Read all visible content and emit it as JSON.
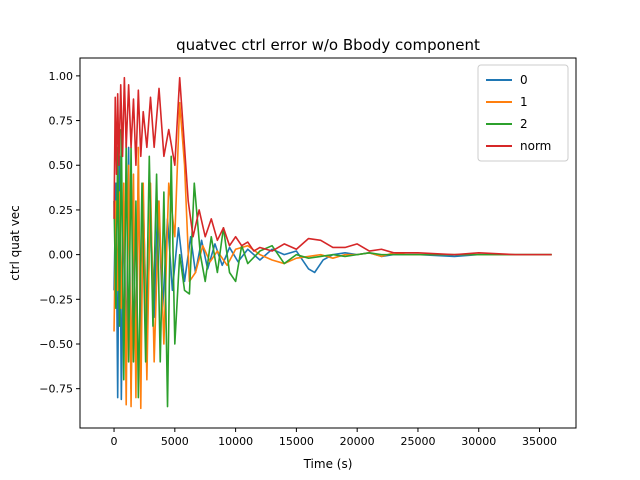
{
  "chart_data": {
    "type": "line",
    "title": "quatvec ctrl error w/o Bbody component",
    "xlabel": "Time (s)",
    "ylabel": "ctrl quat vec",
    "xlim": [
      -2800,
      38000
    ],
    "ylim": [
      -0.97,
      1.1
    ],
    "xticks": [
      0,
      5000,
      10000,
      15000,
      20000,
      25000,
      30000,
      35000
    ],
    "xtick_labels": [
      "0",
      "5000",
      "10000",
      "15000",
      "20000",
      "25000",
      "30000",
      "35000"
    ],
    "yticks": [
      -0.75,
      -0.5,
      -0.25,
      0.0,
      0.25,
      0.5,
      0.75,
      1.0
    ],
    "ytick_labels": [
      "−0.75",
      "−0.50",
      "−0.25",
      "0.00",
      "0.25",
      "0.50",
      "0.75",
      "1.00"
    ],
    "grid": false,
    "legend": "top-right",
    "series": [
      {
        "name": "0",
        "color": "#1f77b4",
        "points": [
          [
            0,
            -0.2
          ],
          [
            150,
            0.4
          ],
          [
            300,
            -0.8
          ],
          [
            450,
            0.55
          ],
          [
            600,
            -0.81
          ],
          [
            800,
            0.3
          ],
          [
            1000,
            -0.6
          ],
          [
            1200,
            0.6
          ],
          [
            1400,
            -0.75
          ],
          [
            1600,
            0.2
          ],
          [
            1800,
            -0.55
          ],
          [
            2000,
            0.5
          ],
          [
            2200,
            -0.6
          ],
          [
            2400,
            0.3
          ],
          [
            2700,
            -0.45
          ],
          [
            3000,
            0.25
          ],
          [
            3300,
            -0.35
          ],
          [
            3600,
            0.3
          ],
          [
            4000,
            -0.3
          ],
          [
            4400,
            0.2
          ],
          [
            4800,
            -0.2
          ],
          [
            5300,
            0.15
          ],
          [
            5800,
            -0.15
          ],
          [
            6300,
            0.1
          ],
          [
            6700,
            -0.1
          ],
          [
            7200,
            0.08
          ],
          [
            7700,
            -0.08
          ],
          [
            8300,
            0.06
          ],
          [
            8900,
            -0.06
          ],
          [
            9500,
            0.04
          ],
          [
            10200,
            -0.04
          ],
          [
            11000,
            0.03
          ],
          [
            12000,
            -0.03
          ],
          [
            13000,
            0.03
          ],
          [
            14000,
            0.0
          ],
          [
            15000,
            0.02
          ],
          [
            16000,
            -0.08
          ],
          [
            16500,
            -0.1
          ],
          [
            17200,
            -0.03
          ],
          [
            18000,
            0.0
          ],
          [
            19000,
            0.01
          ],
          [
            20000,
            0.0
          ],
          [
            21000,
            0.01
          ],
          [
            22000,
            -0.01
          ],
          [
            23000,
            0.0
          ],
          [
            25000,
            0.0
          ],
          [
            28000,
            -0.01
          ],
          [
            30000,
            0.0
          ],
          [
            33000,
            0.0
          ],
          [
            36000,
            0.0
          ]
        ]
      },
      {
        "name": "1",
        "color": "#ff7f0e",
        "points": [
          [
            0,
            -0.43
          ],
          [
            150,
            0.3
          ],
          [
            300,
            -0.2
          ],
          [
            450,
            0.35
          ],
          [
            600,
            -0.3
          ],
          [
            800,
            0.4
          ],
          [
            1000,
            -0.84
          ],
          [
            1200,
            0.5
          ],
          [
            1400,
            -0.85
          ],
          [
            1600,
            0.45
          ],
          [
            1800,
            -0.8
          ],
          [
            2000,
            0.6
          ],
          [
            2200,
            -0.86
          ],
          [
            2400,
            0.4
          ],
          [
            2700,
            -0.7
          ],
          [
            3000,
            0.4
          ],
          [
            3300,
            -0.6
          ],
          [
            3700,
            0.3
          ],
          [
            4100,
            -0.5
          ],
          [
            4500,
            0.4
          ],
          [
            5000,
            0.1
          ],
          [
            5400,
            0.85
          ],
          [
            5800,
            0.5
          ],
          [
            6200,
            -0.15
          ],
          [
            6700,
            -0.1
          ],
          [
            7300,
            0.05
          ],
          [
            7900,
            -0.04
          ],
          [
            8500,
            0.02
          ],
          [
            9300,
            -0.06
          ],
          [
            10000,
            0.03
          ],
          [
            11000,
            0.05
          ],
          [
            12000,
            0.0
          ],
          [
            13000,
            -0.03
          ],
          [
            14000,
            -0.05
          ],
          [
            15000,
            -0.02
          ],
          [
            16000,
            -0.01
          ],
          [
            17000,
            0.0
          ],
          [
            18000,
            -0.02
          ],
          [
            19000,
            0.0
          ],
          [
            20000,
            0.0
          ],
          [
            21000,
            0.01
          ],
          [
            22000,
            -0.01
          ],
          [
            23000,
            0.01
          ],
          [
            24000,
            0.0
          ],
          [
            25000,
            0.0
          ],
          [
            28000,
            0.0
          ],
          [
            30000,
            0.0
          ],
          [
            33000,
            0.0
          ],
          [
            36000,
            0.0
          ]
        ]
      },
      {
        "name": "2",
        "color": "#2ca02c",
        "points": [
          [
            0,
            0.3
          ],
          [
            150,
            -0.3
          ],
          [
            300,
            0.6
          ],
          [
            450,
            -0.4
          ],
          [
            600,
            0.7
          ],
          [
            800,
            -0.7
          ],
          [
            1000,
            0.63
          ],
          [
            1200,
            -0.6
          ],
          [
            1400,
            0.6
          ],
          [
            1600,
            -0.6
          ],
          [
            1800,
            0.3
          ],
          [
            2000,
            -0.8
          ],
          [
            2300,
            0.4
          ],
          [
            2600,
            -0.6
          ],
          [
            2900,
            0.55
          ],
          [
            3200,
            -0.4
          ],
          [
            3500,
            0.45
          ],
          [
            3800,
            -0.6
          ],
          [
            4100,
            0.35
          ],
          [
            4400,
            -0.85
          ],
          [
            4700,
            0.55
          ],
          [
            5000,
            -0.5
          ],
          [
            5400,
            0.0
          ],
          [
            5800,
            -0.2
          ],
          [
            6200,
            -0.22
          ],
          [
            6600,
            0.4
          ],
          [
            7100,
            0.0
          ],
          [
            7500,
            -0.15
          ],
          [
            8000,
            0.1
          ],
          [
            8500,
            -0.1
          ],
          [
            9000,
            0.15
          ],
          [
            9500,
            -0.1
          ],
          [
            10000,
            -0.15
          ],
          [
            10500,
            0.05
          ],
          [
            11000,
            -0.05
          ],
          [
            12000,
            0.02
          ],
          [
            13000,
            0.05
          ],
          [
            14000,
            -0.05
          ],
          [
            15000,
            0.0
          ],
          [
            16000,
            -0.02
          ],
          [
            17000,
            -0.01
          ],
          [
            18000,
            0.0
          ],
          [
            19000,
            -0.01
          ],
          [
            20000,
            0.0
          ],
          [
            21000,
            0.01
          ],
          [
            22000,
            0.0
          ],
          [
            23000,
            0.0
          ],
          [
            25000,
            0.0
          ],
          [
            28000,
            0.0
          ],
          [
            30000,
            0.0
          ],
          [
            33000,
            0.0
          ],
          [
            36000,
            0.0
          ]
        ]
      },
      {
        "name": "norm",
        "color": "#d62728",
        "points": [
          [
            0,
            0.2
          ],
          [
            100,
            0.88
          ],
          [
            200,
            0.45
          ],
          [
            300,
            0.9
          ],
          [
            400,
            0.5
          ],
          [
            550,
            0.95
          ],
          [
            700,
            0.55
          ],
          [
            850,
            0.99
          ],
          [
            1000,
            0.6
          ],
          [
            1200,
            0.95
          ],
          [
            1400,
            0.6
          ],
          [
            1600,
            0.87
          ],
          [
            1800,
            0.5
          ],
          [
            2000,
            0.92
          ],
          [
            2200,
            0.55
          ],
          [
            2400,
            0.8
          ],
          [
            2700,
            0.6
          ],
          [
            3000,
            0.88
          ],
          [
            3300,
            0.6
          ],
          [
            3700,
            0.93
          ],
          [
            4100,
            0.55
          ],
          [
            4500,
            0.7
          ],
          [
            5000,
            0.5
          ],
          [
            5400,
            0.99
          ],
          [
            5800,
            0.6
          ],
          [
            6100,
            0.3
          ],
          [
            6500,
            0.1
          ],
          [
            7000,
            0.25
          ],
          [
            7500,
            0.1
          ],
          [
            8000,
            0.2
          ],
          [
            8500,
            0.08
          ],
          [
            9000,
            0.15
          ],
          [
            9500,
            0.05
          ],
          [
            10000,
            0.1
          ],
          [
            10500,
            0.05
          ],
          [
            11000,
            0.07
          ],
          [
            11500,
            0.02
          ],
          [
            12000,
            0.04
          ],
          [
            13000,
            0.02
          ],
          [
            14000,
            0.06
          ],
          [
            15000,
            0.03
          ],
          [
            16000,
            0.09
          ],
          [
            17000,
            0.08
          ],
          [
            18000,
            0.04
          ],
          [
            19000,
            0.04
          ],
          [
            20000,
            0.06
          ],
          [
            21000,
            0.02
          ],
          [
            22000,
            0.03
          ],
          [
            23000,
            0.01
          ],
          [
            25000,
            0.01
          ],
          [
            28000,
            0.0
          ],
          [
            30000,
            0.01
          ],
          [
            33000,
            0.0
          ],
          [
            36000,
            0.0
          ]
        ]
      }
    ]
  }
}
